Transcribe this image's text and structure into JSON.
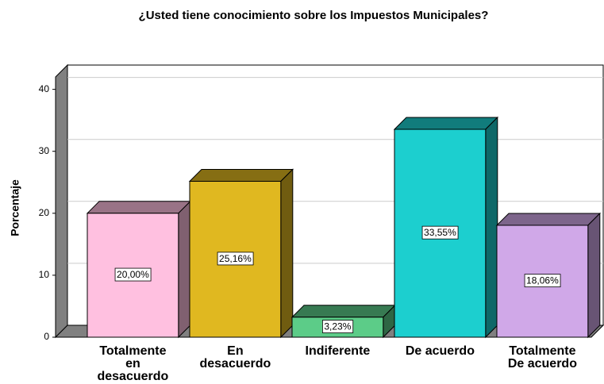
{
  "chart_data": {
    "type": "bar3d",
    "title": "¿Usted tiene conocimiento sobre los Impuestos Municipales?",
    "y_label": "Porcentaje",
    "categories": [
      [
        "Totalmente",
        "en",
        "desacuerdo"
      ],
      [
        "En",
        "desacuerdo"
      ],
      [
        "Indiferente"
      ],
      [
        "De acuerdo"
      ],
      [
        "Totalmente",
        "De acuerdo"
      ]
    ],
    "values": [
      20.0,
      25.16,
      3.23,
      33.55,
      18.06
    ],
    "value_labels": [
      "20,00%",
      "25,16%",
      "3,23%",
      "33,55%",
      "18,06%"
    ],
    "colors": [
      "#ffc0e0",
      "#e0b820",
      "#5ccc88",
      "#1ccfcf",
      "#d0a8e8"
    ],
    "ylim": [
      0,
      42
    ],
    "yticks": [
      0,
      10,
      20,
      30,
      40
    ],
    "grid": true
  }
}
